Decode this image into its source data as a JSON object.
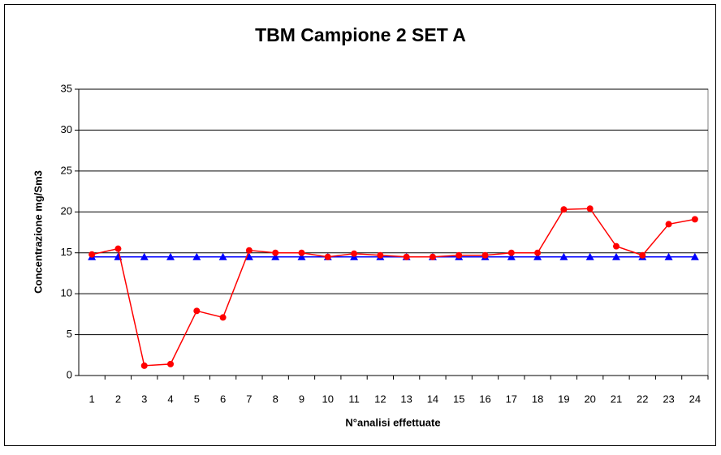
{
  "chart_data": {
    "type": "line",
    "title": "TBM Campione 2 SET A",
    "x_label": "N°analisi effettuate",
    "y_label": "Concentrazione mg/Sm3",
    "categories": [
      "1",
      "2",
      "3",
      "4",
      "5",
      "6",
      "7",
      "8",
      "9",
      "10",
      "11",
      "12",
      "13",
      "14",
      "15",
      "16",
      "17",
      "18",
      "19",
      "20",
      "21",
      "22",
      "23",
      "24"
    ],
    "series": [
      {
        "color": "#ff0000",
        "marker": "circle",
        "values": [
          14.8,
          15.5,
          1.2,
          1.4,
          7.9,
          7.1,
          15.3,
          15.0,
          15.0,
          14.5,
          14.9,
          14.7,
          14.5,
          14.5,
          14.7,
          14.7,
          15.0,
          15.0,
          20.3,
          20.4,
          15.8,
          14.7,
          18.5,
          19.1
        ]
      },
      {
        "color": "#0000ff",
        "marker": "triangle",
        "values": [
          14.5,
          14.5,
          14.5,
          14.5,
          14.5,
          14.5,
          14.5,
          14.5,
          14.5,
          14.5,
          14.5,
          14.5,
          14.5,
          14.5,
          14.5,
          14.5,
          14.5,
          14.5,
          14.5,
          14.5,
          14.5,
          14.5,
          14.5,
          14.5
        ]
      }
    ],
    "ylim": [
      0,
      35
    ],
    "yticks": [
      0,
      5,
      10,
      15,
      20,
      25,
      30,
      35
    ],
    "grid": true
  }
}
